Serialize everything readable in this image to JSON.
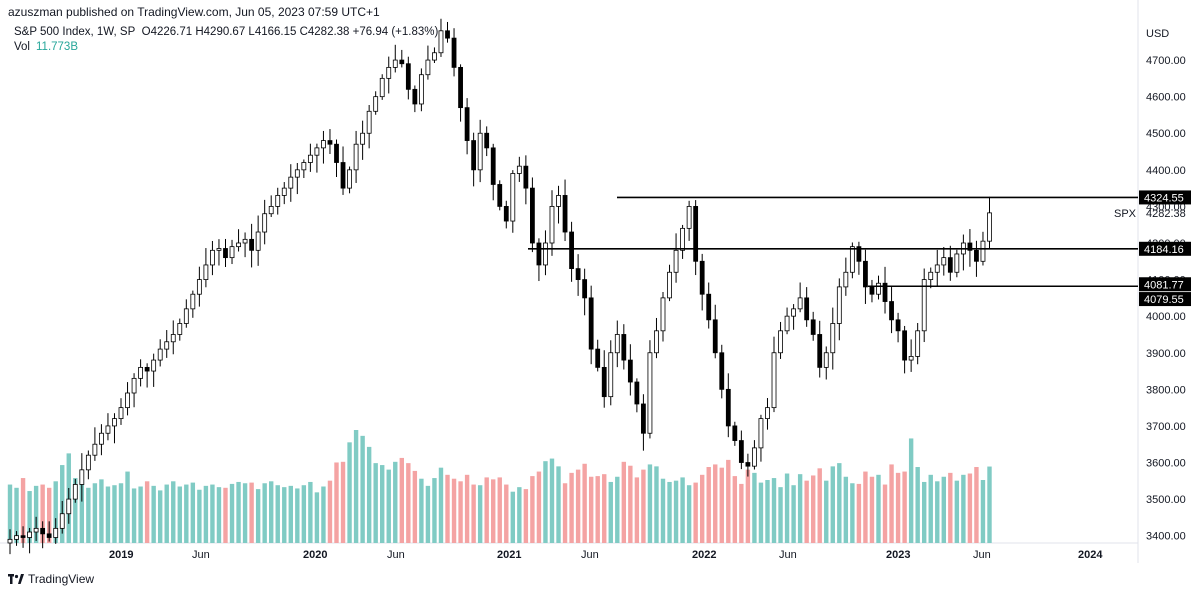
{
  "header": {
    "published": "azuszman published on TradingView.com, Jun 05, 2023 07:59 UTC+1"
  },
  "legend": {
    "symbol": "S&P 500 Index, 1W, SP",
    "ohlc": "O4226.71  H4290.67  L4166.15  C4282.38  +76.94 (+1.83%)",
    "vol_label": "Vol",
    "vol_value": "11.773B"
  },
  "brand": {
    "name": "TradingView"
  },
  "colors": {
    "up": "#26a69a",
    "down": "#ef5350",
    "vol_up": "#80cbc4",
    "vol_down": "#f4a3a3",
    "candle": "#000000"
  },
  "chart_data": {
    "type": "candlestick",
    "title": "S&P 500 Index, 1W, SP",
    "currency": "USD",
    "y_ticks": [
      3400,
      3500,
      3600,
      3700,
      3800,
      3900,
      4000,
      4100,
      4200,
      4300,
      4400,
      4500,
      4600,
      4700
    ],
    "y_tick_labels": [
      "3400.00",
      "3500.00",
      "3600.00",
      "3700.00",
      "3800.00",
      "3900.00",
      "4000.00",
      "4100.00",
      "4200.00",
      "4300.00",
      "4400.00",
      "4500.00",
      "4600.00",
      "4700.00"
    ],
    "ylim": [
      3380,
      4815
    ],
    "x_labels": [
      "2019",
      "Jun",
      "2020",
      "Jun",
      "2021",
      "Jun",
      "2022",
      "Jun",
      "2023",
      "Jun",
      "2024"
    ],
    "last_price": 4282.38,
    "last_price_label": "4282.38",
    "symbol_tag": "SPX",
    "horizontal_lines": [
      {
        "value": 4324.55,
        "label": "4324.55"
      },
      {
        "value": 4184.16,
        "label": "4184.16"
      },
      {
        "value": 4081.77,
        "label": "4081.77"
      },
      {
        "value": 4079.55,
        "label": "4079.55"
      }
    ],
    "closes": [
      3390,
      3400,
      3395,
      3410,
      3420,
      3405,
      3395,
      3420,
      3460,
      3500,
      3540,
      3580,
      3620,
      3650,
      3680,
      3700,
      3720,
      3750,
      3790,
      3830,
      3860,
      3850,
      3880,
      3910,
      3930,
      3950,
      3980,
      4020,
      4060,
      4100,
      4140,
      4180,
      4185,
      4160,
      4190,
      4200,
      4210,
      4180,
      4230,
      4280,
      4300,
      4330,
      4350,
      4380,
      4400,
      4420,
      4440,
      4460,
      4480,
      4470,
      4420,
      4350,
      4400,
      4470,
      4500,
      4560,
      4600,
      4650,
      4680,
      4700,
      4690,
      4620,
      4580,
      4660,
      4700,
      4720,
      4780,
      4760,
      4680,
      4570,
      4480,
      4400,
      4500,
      4460,
      4360,
      4300,
      4260,
      4390,
      4410,
      4350,
      4200,
      4140,
      4200,
      4300,
      4330,
      4230,
      4130,
      4100,
      4050,
      3910,
      3860,
      3780,
      3900,
      3950,
      3880,
      3820,
      3760,
      3680,
      3900,
      3960,
      4050,
      4120,
      4180,
      4240,
      4300,
      4150,
      4060,
      3990,
      3900,
      3800,
      3700,
      3660,
      3600,
      3590,
      3640,
      3720,
      3750,
      3900,
      3960,
      4000,
      4020,
      4050,
      3990,
      3950,
      3860,
      3900,
      3980,
      4080,
      4120,
      4190,
      4150,
      4080,
      4060,
      4090,
      4040,
      3990,
      3960,
      3880,
      3890,
      3960,
      4100,
      4120,
      4140,
      4160,
      4120,
      4170,
      4200,
      4180,
      4150,
      4205,
      4282.38
    ],
    "volumes_B": [
      9,
      8.5,
      10,
      8,
      8.8,
      9,
      8.5,
      9.5,
      12,
      13.8,
      10,
      9,
      8.5,
      9.2,
      9.8,
      8.7,
      8.9,
      9.2,
      11,
      8.4,
      8.7,
      9.5,
      8.8,
      8.1,
      9,
      9.5,
      8.7,
      9,
      9.3,
      8.2,
      8.8,
      9,
      8.6,
      8.5,
      9.1,
      9.4,
      9.2,
      9.3,
      8.3,
      9.2,
      9.5,
      8.9,
      8.6,
      8.8,
      8.4,
      8.9,
      9.4,
      7.8,
      8.7,
      9.6,
      12.4,
      12.5,
      15.5,
      17.4,
      16.5,
      14.8,
      12.3,
      12,
      11.3,
      12.5,
      13.1,
      12.3,
      11.1,
      9.9,
      8.8,
      10,
      11.6,
      10.5,
      9.9,
      9.5,
      10.5,
      9,
      8.9,
      10.1,
      9.8,
      10.1,
      9,
      7.9,
      8.6,
      8.3,
      10.3,
      11,
      12.6,
      13,
      11.8,
      9.2,
      10.8,
      11.3,
      12.2,
      10.2,
      10.3,
      10.6,
      9.4,
      10.2,
      12.5,
      11.9,
      10.1,
      11.3,
      12.1,
      11.8,
      9.9,
      9.4,
      9.6,
      10.1,
      8.9,
      9.3,
      10.5,
      11.7,
      12.1,
      11.6,
      12.8,
      10.3,
      9.1,
      11.3,
      10.8,
      9.3,
      9.7,
      10,
      8.6,
      10.7,
      8.9,
      10.6,
      9.6,
      10.4,
      11.5,
      9.6,
      11.8,
      12.3,
      10.2,
      9.2,
      9.1,
      11,
      10.2,
      10.5,
      9,
      12.1,
      10.8,
      11,
      16.1,
      11.7,
      9.4,
      10.5,
      9.5,
      10.2,
      10.8,
      9.6,
      10.5,
      10.7,
      11.7,
      9.7,
      11.773
    ]
  }
}
